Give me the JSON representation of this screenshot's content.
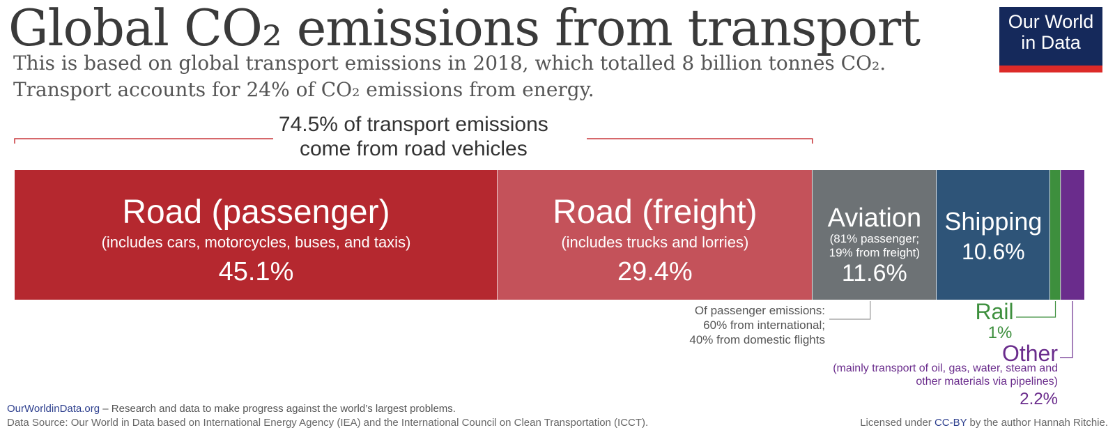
{
  "chart_data": {
    "type": "bar",
    "orientation": "stacked-horizontal",
    "title": "Global CO₂ emissions from transport",
    "subtitle_lines": [
      "This is based on global transport emissions in 2018, which totalled 8 billion tonnes CO₂.",
      "Transport accounts for 24% of CO₂ emissions from energy."
    ],
    "unit": "%",
    "segments": [
      {
        "name": "Road (passenger)",
        "note": "(includes cars, motorcycles, buses, and taxis)",
        "value": 45.1,
        "label": "45.1%",
        "color": "#b5282f"
      },
      {
        "name": "Road (freight)",
        "note": "(includes trucks and lorries)",
        "value": 29.4,
        "label": "29.4%",
        "color": "#c4525a"
      },
      {
        "name": "Aviation",
        "note_lines": [
          "(81% passenger;",
          "19% from freight)"
        ],
        "value": 11.6,
        "label": "11.6%",
        "color": "#6d7275"
      },
      {
        "name": "Shipping",
        "value": 10.6,
        "label": "10.6%",
        "color": "#2e5478"
      },
      {
        "name": "Rail",
        "value": 1,
        "label": "1%",
        "color": "#3d8f3d"
      },
      {
        "name": "Other",
        "note_lines": [
          "(mainly transport of oil, gas, water, steam and",
          "other materials via pipelines)"
        ],
        "value": 2.2,
        "label": "2.2%",
        "color": "#6a2c8c"
      }
    ],
    "bracket": {
      "lines": [
        "74.5% of transport emissions",
        "come from road vehicles"
      ],
      "color": "#c8363a"
    },
    "aviation_callout": [
      "Of passenger emissions:",
      "60% from international;",
      "40% from domestic flights"
    ]
  },
  "logo": {
    "line1": "Our World",
    "line2": "in Data"
  },
  "footer": {
    "site": "OurWorldinData.org",
    "tagline": " – Research and data to make progress against the world’s largest problems.",
    "source": "Data Source: Our World in Data based on International Energy Agency (IEA) and the International Council on Clean Transportation (ICCT).",
    "license_pre": "Licensed under ",
    "license_link": "CC-BY",
    "license_post": " by the author Hannah Ritchie."
  },
  "colors": {
    "road_bracket": "#c8363a",
    "rail": "#3d8f3d",
    "other": "#6a2c8c",
    "callout_line": "#999999"
  }
}
